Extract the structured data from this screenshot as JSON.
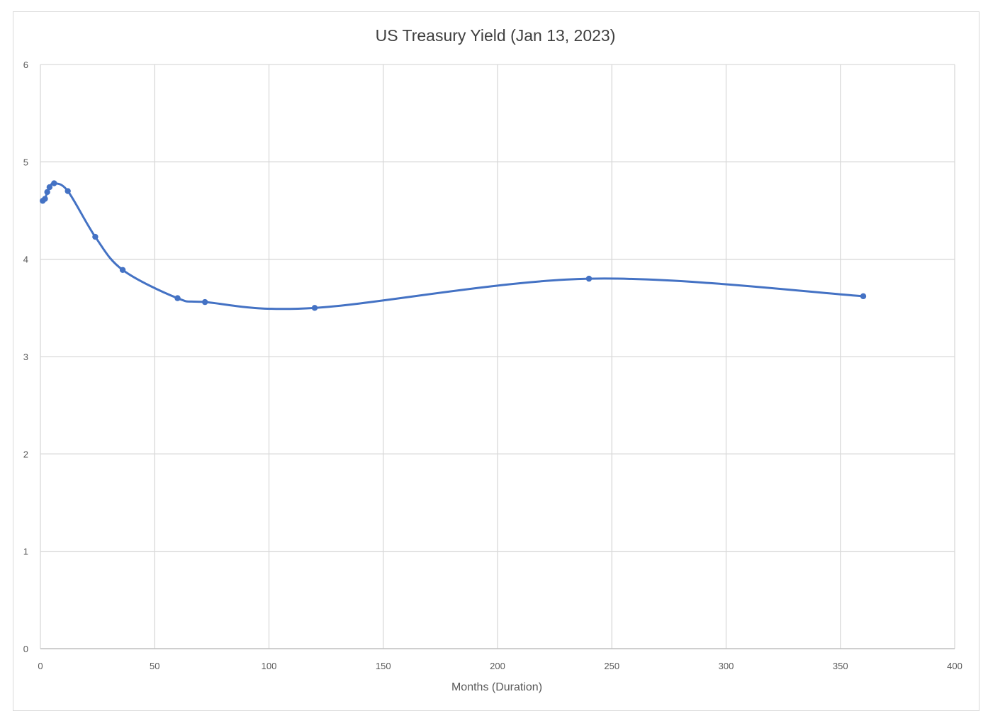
{
  "chart_data": {
    "type": "scatter",
    "title": "US Treasury Yield (Jan 13, 2023)",
    "xlabel": "Months (Duration)",
    "ylabel": "",
    "xlim": [
      0,
      400
    ],
    "ylim": [
      0,
      6
    ],
    "x_ticks": [
      0,
      50,
      100,
      150,
      200,
      250,
      300,
      350,
      400
    ],
    "y_ticks": [
      0,
      1,
      2,
      3,
      4,
      5,
      6
    ],
    "grid": true,
    "legend": "none",
    "smoothed_line": true,
    "marker": "circle",
    "series": [
      {
        "color": "#4472c4",
        "x": [
          1,
          2,
          3,
          4,
          6,
          12,
          24,
          36,
          60,
          72,
          120,
          240,
          360
        ],
        "y": [
          4.6,
          4.62,
          4.69,
          4.74,
          4.78,
          4.7,
          4.23,
          3.89,
          3.6,
          3.56,
          3.5,
          3.8,
          3.62
        ]
      }
    ]
  }
}
